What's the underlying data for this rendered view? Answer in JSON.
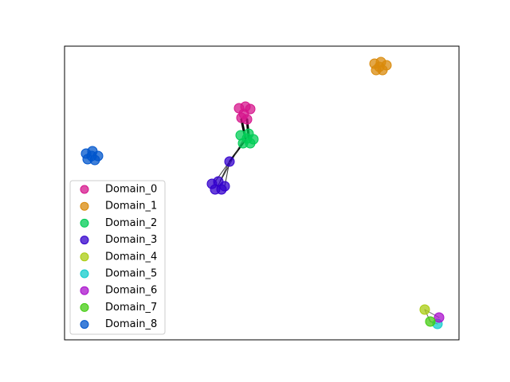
{
  "chart_data": {
    "type": "scatter",
    "xlim": [
      0,
      495
    ],
    "ylim": [
      0,
      369
    ],
    "legend": "lower left",
    "series": [
      {
        "name": "Domain_0",
        "color": "#d6168c",
        "x": [
          219,
          227,
          233,
          222,
          229,
          225
        ],
        "y": [
          291,
          293,
          290,
          279,
          277,
          284
        ]
      },
      {
        "name": "Domain_1",
        "color": "#d98a0b",
        "x": [
          389,
          397,
          404,
          391,
          399,
          395
        ],
        "y": [
          347,
          349,
          345,
          339,
          339,
          343
        ]
      },
      {
        "name": "Domain_2",
        "color": "#00cc55",
        "x": [
          221,
          231,
          237,
          224,
          233,
          229
        ],
        "y": [
          257,
          259,
          252,
          247,
          247,
          253
        ]
      },
      {
        "name": "Domain_3",
        "color": "#3300cc",
        "x": [
          185,
          193,
          201,
          189,
          197,
          207
        ],
        "y": [
          196,
          199,
          193,
          189,
          189,
          224
        ]
      },
      {
        "name": "Domain_4",
        "color": "#aacc11",
        "x": [
          452
        ],
        "y": [
          38
        ]
      },
      {
        "name": "Domain_5",
        "color": "#11cccc",
        "x": [
          468
        ],
        "y": [
          20
        ]
      },
      {
        "name": "Domain_6",
        "color": "#aa11cc",
        "x": [
          470
        ],
        "y": [
          28
        ]
      },
      {
        "name": "Domain_7",
        "color": "#44cc11",
        "x": [
          459
        ],
        "y": [
          23
        ]
      },
      {
        "name": "Domain_8",
        "color": "#0055cc",
        "x": [
          27,
          35,
          42,
          29,
          38,
          34
        ],
        "y": [
          234,
          237,
          231,
          227,
          226,
          231
        ]
      }
    ]
  }
}
